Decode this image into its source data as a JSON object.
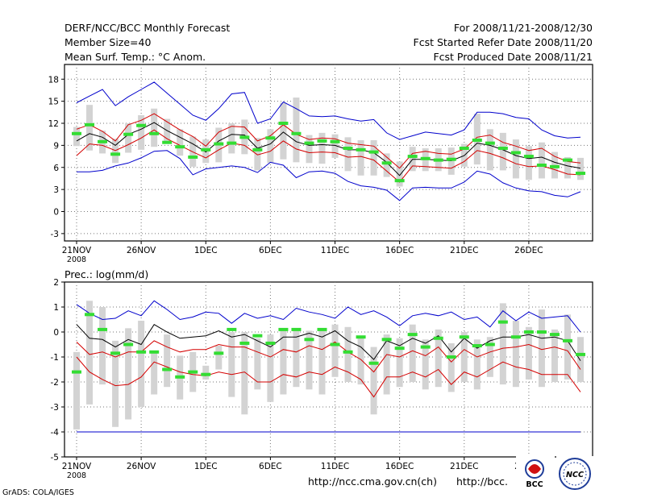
{
  "header": {
    "title": "DERF/NCC/BCC Monthly Forecast",
    "member_size": "Member Size=40",
    "variable": "Mean Surf. Temp.: °C Anom.",
    "period": "For 2008/11/21-2008/12/30",
    "started": "Fcst Started Refer Date 2008/11/20",
    "produced": "Fcst Produced Date 2008/11/21"
  },
  "footer": {
    "credit": "GrADS: COLA/IGES",
    "url1": "http://ncc.cma.gov.cn(ch)",
    "url2": "http://bcc.",
    "logo_bcc": "BCC",
    "logo_ncc": "NCC"
  },
  "colors": {
    "box": "#d3d3d3",
    "extreme": "#0000cc",
    "quartile": "#d40000",
    "mean": "#000000",
    "member": "#33dd33",
    "grid": "#777777"
  },
  "chart_data": [
    {
      "type": "line",
      "title": "Mean Surf. Temp.: °C Anom.",
      "xlabel": "",
      "ylabel": "",
      "ylim": [
        -4,
        20
      ],
      "yticks": [
        -3,
        0,
        3,
        6,
        9,
        12,
        15,
        18
      ],
      "x_tick_labels": [
        "21NOV",
        "26NOV",
        "1DEC",
        "6DEC",
        "11DEC",
        "16DEC",
        "21DEC",
        "26DEC"
      ],
      "x_tick_days": [
        1,
        6,
        11,
        16,
        21,
        26,
        31,
        36
      ],
      "x_sub_label": "2008",
      "days": 40,
      "series": [
        {
          "name": "max",
          "values": [
            14.8,
            15.7,
            16.6,
            14.4,
            15.6,
            16.6,
            17.6,
            16.1,
            14.6,
            13.1,
            12.4,
            14.0,
            16.0,
            16.2,
            12.0,
            12.6,
            14.9,
            14.0,
            13.0,
            12.9,
            13.0,
            12.6,
            12.3,
            12.5,
            10.7,
            9.8,
            10.3,
            10.8,
            10.6,
            10.4,
            11.1,
            13.5,
            13.5,
            13.3,
            12.8,
            12.6,
            11.1,
            10.3,
            10.0,
            10.1
          ]
        },
        {
          "name": "q_upper",
          "values": [
            11.2,
            11.8,
            10.9,
            9.6,
            11.8,
            12.4,
            13.3,
            12.2,
            11.1,
            10.2,
            8.9,
            10.8,
            11.6,
            11.5,
            9.6,
            10.3,
            11.8,
            10.5,
            9.8,
            10.0,
            9.9,
            9.3,
            9.1,
            8.9,
            7.4,
            5.9,
            7.9,
            8.2,
            7.9,
            7.8,
            8.5,
            10.1,
            10.4,
            9.4,
            8.9,
            8.3,
            8.6,
            7.5,
            6.8,
            6.6
          ]
        },
        {
          "name": "mean",
          "values": [
            9.6,
            10.6,
            10.1,
            9.0,
            10.5,
            11.2,
            12.1,
            11.0,
            10.1,
            9.2,
            8.1,
            9.6,
            10.5,
            10.4,
            8.6,
            9.2,
            10.8,
            9.5,
            9.0,
            9.1,
            9.0,
            8.4,
            8.4,
            8.0,
            6.7,
            4.9,
            7.1,
            7.1,
            7.0,
            6.9,
            7.6,
            9.3,
            9.0,
            8.4,
            7.6,
            7.2,
            7.4,
            6.7,
            6.2,
            5.9
          ]
        },
        {
          "name": "q_lower",
          "values": [
            7.6,
            9.2,
            9.0,
            8.3,
            9.1,
            10.0,
            11.1,
            9.9,
            9.0,
            8.1,
            7.3,
            8.4,
            9.3,
            9.0,
            7.7,
            8.2,
            9.6,
            8.5,
            8.0,
            8.1,
            8.0,
            7.4,
            7.5,
            7.0,
            5.5,
            4.0,
            6.2,
            6.1,
            6.0,
            5.9,
            6.8,
            8.3,
            7.9,
            7.3,
            6.5,
            6.1,
            6.2,
            5.7,
            5.1,
            5.0
          ]
        },
        {
          "name": "min",
          "values": [
            5.4,
            5.4,
            5.6,
            6.2,
            6.6,
            7.3,
            8.2,
            8.3,
            7.2,
            5.0,
            5.8,
            6.0,
            6.2,
            6.0,
            5.3,
            6.7,
            6.3,
            4.6,
            5.4,
            5.5,
            5.2,
            4.1,
            3.5,
            3.3,
            2.9,
            1.5,
            3.2,
            3.3,
            3.2,
            3.2,
            4.0,
            5.5,
            5.1,
            3.9,
            3.2,
            2.8,
            2.7,
            2.2,
            2.0,
            2.7
          ]
        },
        {
          "name": "member",
          "values": [
            10.6,
            11.8,
            9.5,
            7.8,
            10.5,
            11.7,
            10.6,
            9.4,
            8.8,
            7.4,
            8.4,
            9.2,
            9.3,
            10.1,
            8.4,
            10.0,
            12.0,
            10.6,
            9.3,
            9.6,
            9.5,
            8.6,
            8.4,
            8.1,
            6.6,
            4.2,
            7.5,
            7.2,
            7.0,
            7.1,
            8.6,
            9.7,
            9.3,
            8.6,
            8.0,
            7.5,
            6.3,
            6.1,
            7.0,
            5.2
          ]
        },
        {
          "name": "box_high",
          "values": [
            11.5,
            14.5,
            11.0,
            9.9,
            12.0,
            13.1,
            14.0,
            12.6,
            11.2,
            10.2,
            9.8,
            11.4,
            12.0,
            12.5,
            10.0,
            11.2,
            14.8,
            15.5,
            10.4,
            10.7,
            10.5,
            10.1,
            9.7,
            9.7,
            7.9,
            6.8,
            8.8,
            8.6,
            8.6,
            8.7,
            9.2,
            13.3,
            11.2,
            10.7,
            9.8,
            8.9,
            9.4,
            8.1,
            7.4,
            7.3
          ]
        },
        {
          "name": "box_low",
          "values": [
            8.9,
            8.3,
            7.9,
            6.6,
            8.0,
            8.4,
            8.8,
            9.4,
            7.6,
            6.1,
            6.6,
            6.7,
            7.9,
            7.8,
            5.6,
            6.6,
            7.1,
            6.7,
            6.6,
            6.5,
            7.3,
            5.5,
            4.9,
            4.9,
            4.7,
            3.4,
            5.5,
            5.5,
            5.5,
            5.0,
            6.1,
            6.4,
            5.6,
            5.6,
            4.5,
            4.3,
            4.5,
            4.5,
            4.5,
            4.3
          ]
        }
      ]
    },
    {
      "type": "line",
      "title": "Prec.: log(mm/d)",
      "xlabel": "",
      "ylabel": "",
      "ylim": [
        -5,
        2
      ],
      "yticks": [
        -5,
        -4,
        -3,
        -2,
        -1,
        0,
        1,
        2
      ],
      "x_tick_labels": [
        "21NOV",
        "26NOV",
        "1DEC",
        "6DEC",
        "11DEC",
        "16DEC",
        "21DEC",
        "26DEC"
      ],
      "x_tick_days": [
        1,
        6,
        11,
        16,
        21,
        26,
        31,
        36
      ],
      "x_sub_label": "2008",
      "days": 40,
      "series": [
        {
          "name": "max",
          "values": [
            1.1,
            0.75,
            0.5,
            0.55,
            0.85,
            0.65,
            1.25,
            0.9,
            0.5,
            0.6,
            0.8,
            0.75,
            0.35,
            0.75,
            0.55,
            0.65,
            0.5,
            0.95,
            0.8,
            0.7,
            0.55,
            1.0,
            0.7,
            0.85,
            0.6,
            0.25,
            0.65,
            0.75,
            0.65,
            0.8,
            0.5,
            0.6,
            0.2,
            0.85,
            0.45,
            0.8,
            0.55,
            0.6,
            0.65,
            0.0
          ]
        },
        {
          "name": "mean",
          "values": [
            0.3,
            -0.25,
            -0.3,
            -0.6,
            -0.3,
            -0.5,
            0.3,
            0.0,
            -0.25,
            -0.2,
            -0.15,
            0.05,
            -0.2,
            -0.1,
            -0.35,
            -0.6,
            -0.2,
            -0.2,
            -0.05,
            -0.2,
            0.05,
            -0.35,
            -0.6,
            -1.1,
            -0.35,
            -0.55,
            -0.25,
            -0.45,
            -0.15,
            -0.8,
            -0.25,
            -0.65,
            -0.35,
            -0.2,
            -0.2,
            -0.1,
            -0.25,
            -0.2,
            -0.35,
            -1.15
          ]
        },
        {
          "name": "q_upper",
          "values": [
            -0.4,
            -0.9,
            -0.8,
            -1.0,
            -0.8,
            -0.8,
            -0.35,
            -0.6,
            -0.8,
            -0.7,
            -0.7,
            -0.5,
            -0.6,
            -0.6,
            -0.8,
            -1.0,
            -0.7,
            -0.8,
            -0.55,
            -0.7,
            -0.4,
            -0.8,
            -1.1,
            -1.6,
            -0.9,
            -1.0,
            -0.75,
            -0.95,
            -0.6,
            -1.2,
            -0.7,
            -1.0,
            -0.8,
            -0.65,
            -0.6,
            -0.5,
            -0.7,
            -0.6,
            -0.75,
            -1.5
          ]
        },
        {
          "name": "q_lower",
          "values": [
            -1.0,
            -1.6,
            -1.9,
            -2.15,
            -2.1,
            -1.8,
            -1.2,
            -1.4,
            -1.6,
            -1.7,
            -1.75,
            -1.6,
            -1.7,
            -1.6,
            -2.0,
            -2.0,
            -1.7,
            -1.8,
            -1.6,
            -1.7,
            -1.4,
            -1.6,
            -1.9,
            -2.6,
            -1.8,
            -1.8,
            -1.6,
            -1.8,
            -1.5,
            -2.1,
            -1.6,
            -1.8,
            -1.5,
            -1.2,
            -1.4,
            -1.5,
            -1.7,
            -1.7,
            -1.7,
            -2.4
          ]
        },
        {
          "name": "min",
          "values": [
            -4.0,
            -4.0,
            -4.0,
            -4.0,
            -4.0,
            -4.0,
            -4.0,
            -4.0,
            -4.0,
            -4.0,
            -4.0,
            -4.0,
            -4.0,
            -4.0,
            -4.0,
            -4.0,
            -4.0,
            -4.0,
            -4.0,
            -4.0,
            -4.0,
            -4.0,
            -4.0,
            -4.0,
            -4.0,
            -4.0,
            -4.0,
            -4.0,
            -4.0,
            -4.0,
            -4.0,
            -4.0,
            -4.0,
            -4.0,
            -4.0,
            -4.0,
            -4.0,
            -4.0,
            -4.0,
            -4.0
          ]
        },
        {
          "name": "member",
          "values": [
            -1.6,
            0.7,
            0.1,
            -0.85,
            -0.5,
            -0.8,
            -0.8,
            -1.5,
            -1.8,
            -1.6,
            -1.7,
            -0.85,
            0.1,
            -0.45,
            -0.15,
            -0.45,
            0.1,
            0.1,
            -0.3,
            0.1,
            -0.5,
            -0.8,
            -0.2,
            -1.25,
            -0.3,
            -0.65,
            -0.1,
            -0.6,
            -0.25,
            -1.0,
            -0.2,
            -0.55,
            -0.5,
            0.4,
            -0.2,
            0.0,
            0.0,
            -0.1,
            -0.35,
            -0.9
          ]
        },
        {
          "name": "box_high",
          "values": [
            -0.8,
            1.25,
            1.0,
            -0.35,
            0.15,
            0.45,
            -0.75,
            -0.1,
            -0.95,
            -0.8,
            -1.35,
            -0.55,
            0.0,
            0.0,
            -0.25,
            -0.1,
            0.15,
            0.15,
            0.05,
            0.1,
            0.3,
            0.2,
            -0.25,
            -0.6,
            -0.1,
            -0.25,
            0.3,
            -0.3,
            0.1,
            -0.45,
            0.0,
            -0.3,
            -0.2,
            1.15,
            0.45,
            0.2,
            0.9,
            0.1,
            0.7,
            -0.2
          ]
        },
        {
          "name": "box_low",
          "values": [
            -3.9,
            -2.9,
            -2.1,
            -3.8,
            -3.5,
            -3.0,
            -2.5,
            -2.2,
            -2.7,
            -2.4,
            -1.9,
            -1.5,
            -2.6,
            -3.3,
            -2.3,
            -2.8,
            -2.5,
            -2.2,
            -2.3,
            -2.5,
            -1.8,
            -2.0,
            -2.1,
            -3.3,
            -2.5,
            -2.2,
            -2.0,
            -2.3,
            -2.2,
            -2.4,
            -2.0,
            -2.3,
            -1.8,
            -2.1,
            -2.2,
            -1.9,
            -2.2,
            -2.0,
            -1.9,
            -2.0
          ]
        }
      ]
    }
  ]
}
